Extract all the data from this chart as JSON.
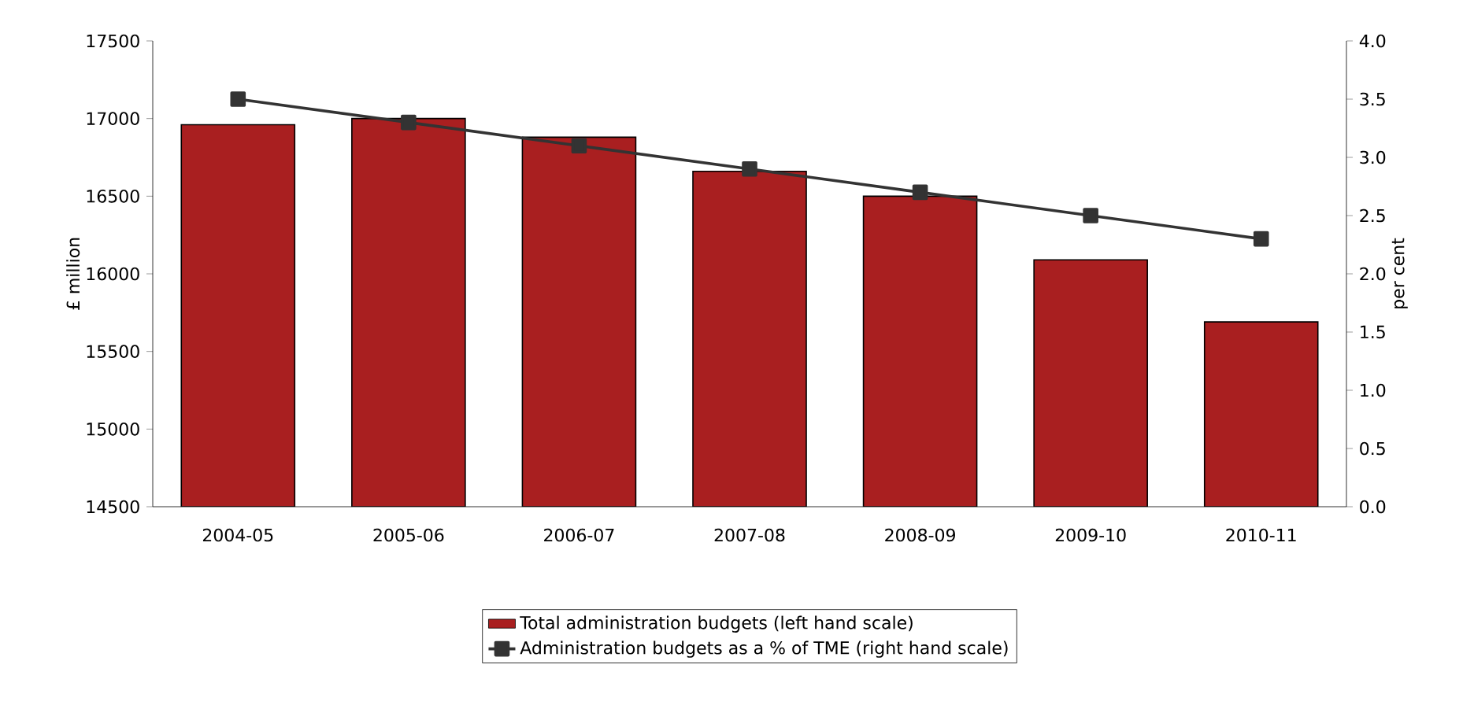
{
  "chart_data": {
    "type": "bar",
    "categories": [
      "2004-05",
      "2005-06",
      "2006-07",
      "2007-08",
      "2008-09",
      "2009-10",
      "2010-11"
    ],
    "ylabel": "£ million",
    "y2label": "per cent",
    "ylim": [
      14500,
      17500
    ],
    "yticks": [
      14500,
      15000,
      15500,
      16000,
      16500,
      17000,
      17500
    ],
    "y2lim": [
      0,
      4
    ],
    "y2ticks": [
      {
        "value": 0,
        "label": "0.0"
      },
      {
        "value": 0.5,
        "label": "0.5"
      },
      {
        "value": 1,
        "label": "1.0"
      },
      {
        "value": 1.5,
        "label": "1.5"
      },
      {
        "value": 2,
        "label": "2.0"
      },
      {
        "value": 2.5,
        "label": "2.5"
      },
      {
        "value": 3,
        "label": "3.0"
      },
      {
        "value": 3.5,
        "label": "3.5"
      },
      {
        "value": 4,
        "label": "4.0"
      }
    ],
    "legend": "bottom",
    "marker": "square",
    "series": [
      {
        "name": "Total administration budgets (left hand scale)",
        "color": "#a91f20",
        "values": [
          16960,
          17000,
          16880,
          16660,
          16500,
          16090,
          15690
        ]
      },
      {
        "name": "Administration budgets as a % of TME (right hand scale)",
        "type": "line",
        "axis": "y2",
        "color": "#333333",
        "values": [
          3.5,
          3.3,
          3.1,
          2.9,
          2.7,
          2.5,
          2.3
        ]
      }
    ]
  }
}
